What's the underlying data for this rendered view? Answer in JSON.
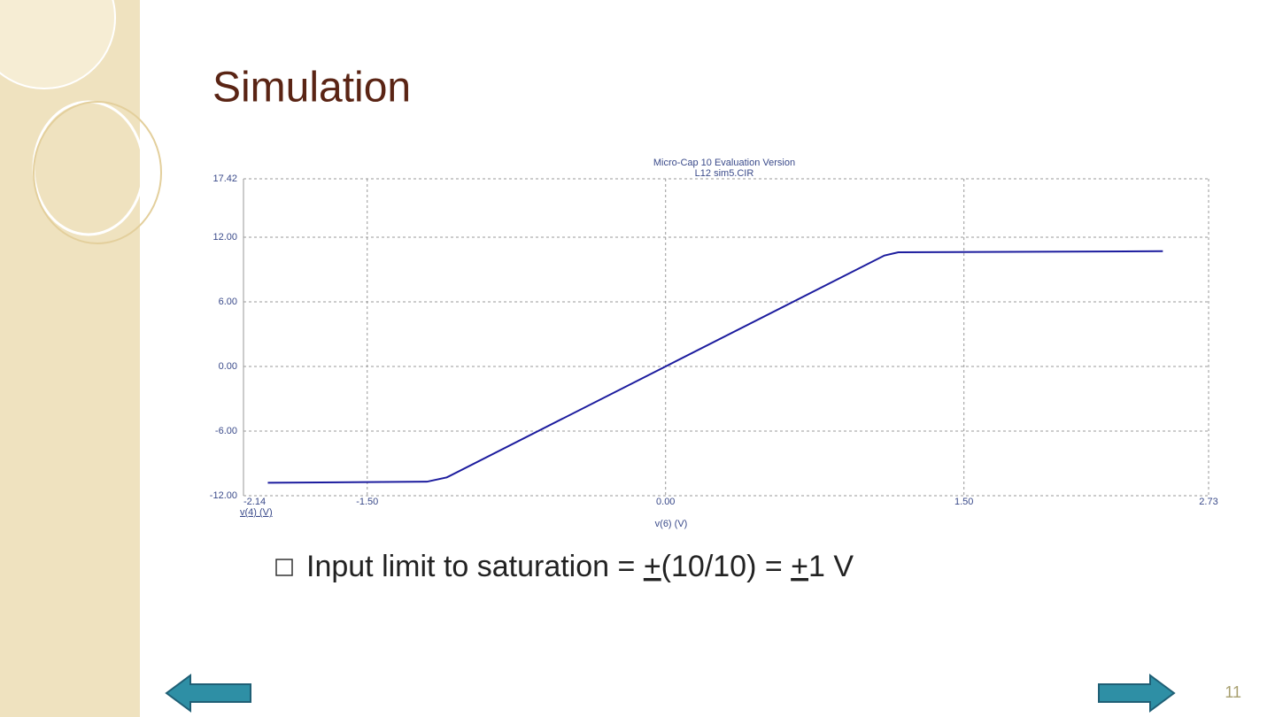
{
  "slide_title": "Simulation",
  "bullet": [
    {
      "text": "Input limit to saturation = ",
      "underline": false
    },
    {
      "text": "+",
      "underline": true
    },
    {
      "text": "(10/10) = ",
      "underline": false
    },
    {
      "text": "+",
      "underline": true
    },
    {
      "text": "1 V",
      "underline": false
    }
  ],
  "page_number": "11",
  "chart_data": {
    "type": "line",
    "title": "Micro-Cap 10 Evaluation Version",
    "subtitle": "L12 sim5.CIR",
    "xlabel": "v(6) (V)",
    "x": [
      -2.0,
      -1.2,
      -1.1,
      0,
      1.1,
      1.17,
      2.5
    ],
    "series": [
      {
        "name": "v(4) (V)",
        "color": "#1c1c9e",
        "values": [
          -10.8,
          -10.7,
          -10.3,
          0,
          10.3,
          10.6,
          10.7
        ]
      }
    ],
    "xlim": [
      -2.14,
      2.73
    ],
    "xticks": [
      -2.14,
      {
        "value": -1.5,
        "label": "-1.50"
      },
      {
        "value": 0,
        "label": "0.00"
      },
      {
        "value": 1.5,
        "label": "1.50"
      },
      2.73
    ],
    "ylim": [
      -12,
      17.42
    ],
    "yticks": [
      {
        "value": -12,
        "label": "-12.00"
      },
      {
        "value": -6,
        "label": "-6.00"
      },
      {
        "value": 0,
        "label": "0.00"
      },
      {
        "value": 6,
        "label": "6.00"
      },
      {
        "value": 12,
        "label": "12.00"
      },
      17.42
    ],
    "grid": true
  }
}
